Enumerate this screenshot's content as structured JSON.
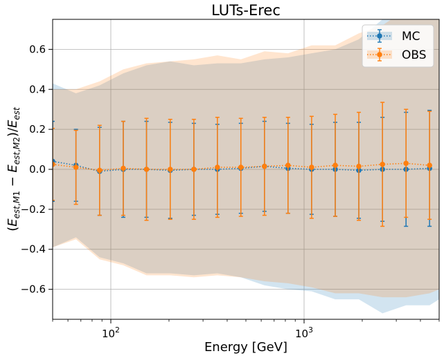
{
  "chart_data": {
    "type": "line",
    "title": "LUTs-Erec",
    "xlabel": "Energy [GeV]",
    "ylabel": "(E_est,M1 − E_est,M2)/E_est",
    "xscale": "log",
    "xlim": [
      50,
      5000
    ],
    "ylim": [
      -0.75,
      0.75
    ],
    "grid": true,
    "legend_position": "top-right",
    "x_tick_labels": [
      {
        "base": "10",
        "exp": "2",
        "value": 100
      },
      {
        "base": "10",
        "exp": "3",
        "value": 1000
      }
    ],
    "y_ticks": [
      {
        "value": 0.6,
        "label": "0.6"
      },
      {
        "value": 0.4,
        "label": "0.4"
      },
      {
        "value": 0.2,
        "label": "0.2"
      },
      {
        "value": 0.0,
        "label": "0.0"
      },
      {
        "value": -0.2,
        "label": "−0.2"
      },
      {
        "value": -0.4,
        "label": "−0.4"
      },
      {
        "value": -0.6,
        "label": "−0.6"
      }
    ],
    "x": [
      50.0,
      66.0,
      87.5,
      116,
      153,
      203,
      269,
      356,
      471,
      624,
      826,
      1094,
      1450,
      1920,
      2545,
      3370,
      4460
    ],
    "band_x": [
      50,
      66,
      87.5,
      116,
      153,
      203,
      269,
      356,
      471,
      624,
      826,
      1094,
      1450,
      1920,
      2545,
      3370,
      4460,
      5000
    ],
    "series": [
      {
        "name": "MC",
        "color": "#1f77b4",
        "values": [
          0.04,
          0.02,
          -0.01,
          0.0,
          0.0,
          -0.005,
          0.0,
          0.0,
          0.005,
          0.015,
          0.005,
          0.0,
          0.0,
          -0.005,
          0.0,
          0.0,
          0.005
        ],
        "errors": [
          0.2,
          0.18,
          0.22,
          0.24,
          0.24,
          0.24,
          0.23,
          0.225,
          0.225,
          0.225,
          0.225,
          0.225,
          0.235,
          0.24,
          0.26,
          0.285,
          0.29
        ],
        "band_upper": [
          0.43,
          0.38,
          0.42,
          0.48,
          0.52,
          0.54,
          0.52,
          0.53,
          0.53,
          0.55,
          0.56,
          0.58,
          0.6,
          0.65,
          0.75,
          0.85,
          0.92,
          0.95
        ],
        "band_lower": [
          -0.39,
          -0.34,
          -0.44,
          -0.47,
          -0.52,
          -0.52,
          -0.53,
          -0.52,
          -0.54,
          -0.58,
          -0.6,
          -0.61,
          -0.65,
          -0.65,
          -0.72,
          -0.68,
          -0.68,
          -0.65
        ]
      },
      {
        "name": "OBS",
        "color": "#ff7f0e",
        "values": [
          0.025,
          0.01,
          -0.005,
          0.005,
          0.0,
          0.0,
          0.0,
          0.01,
          0.01,
          0.015,
          0.02,
          0.01,
          0.02,
          0.015,
          0.025,
          0.03,
          0.02
        ],
        "errors": [
          0.18,
          0.185,
          0.225,
          0.235,
          0.255,
          0.25,
          0.25,
          0.25,
          0.245,
          0.245,
          0.24,
          0.255,
          0.255,
          0.27,
          0.31,
          0.27,
          0.27
        ],
        "band_upper": [
          0.4,
          0.4,
          0.44,
          0.5,
          0.53,
          0.54,
          0.55,
          0.57,
          0.55,
          0.59,
          0.58,
          0.62,
          0.62,
          0.68,
          0.72,
          0.8,
          0.85,
          0.9
        ],
        "band_lower": [
          -0.39,
          -0.35,
          -0.45,
          -0.48,
          -0.53,
          -0.53,
          -0.54,
          -0.53,
          -0.54,
          -0.56,
          -0.57,
          -0.59,
          -0.62,
          -0.62,
          -0.64,
          -0.64,
          -0.62,
          -0.6
        ]
      }
    ]
  }
}
